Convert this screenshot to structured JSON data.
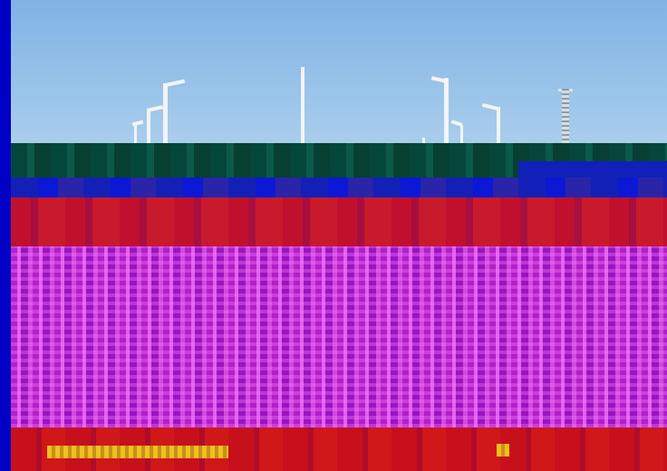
{
  "scene": {
    "subject": "",
    "colors": {
      "border": "#0000c4",
      "sky": "#a9cdec",
      "treeline": "#04473a",
      "blue_band": "#0b18d6",
      "red_band": "#c0102e",
      "magenta_field": "#b020c8",
      "bottom_band": "#c8101c"
    }
  }
}
